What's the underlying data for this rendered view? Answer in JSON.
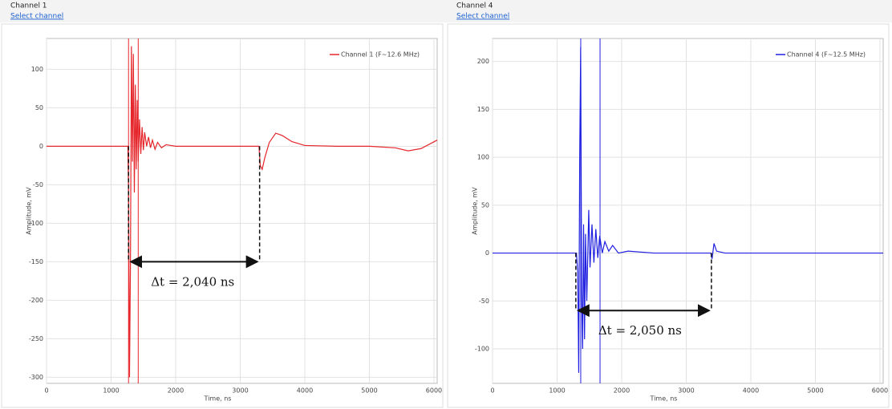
{
  "chart_data": [
    {
      "type": "line",
      "panel_title": "Channel 1",
      "link": "Select channel",
      "xlabel": "Time, ns",
      "ylabel": "Amplitude, mV",
      "xlim": [
        0,
        6050
      ],
      "ylim": [
        -308,
        140
      ],
      "xticks": [
        0,
        1000,
        2000,
        3000,
        4000,
        5000,
        6000
      ],
      "yticks": [
        100,
        50,
        0,
        -50,
        -100,
        -150,
        -200,
        -250,
        -300
      ],
      "grid": true,
      "legend": "upper right",
      "cursors": [
        1270,
        1420
      ],
      "series": [
        {
          "name": "Channel 1 (F~12.6 MHz)",
          "color": "#e5262b",
          "x": [
            0,
            500,
            1000,
            1260,
            1270,
            1285,
            1300,
            1315,
            1330,
            1345,
            1360,
            1375,
            1390,
            1405,
            1420,
            1440,
            1460,
            1480,
            1500,
            1520,
            1550,
            1580,
            1610,
            1640,
            1680,
            1720,
            1780,
            1850,
            2000,
            2500,
            3000,
            3290,
            3310,
            3340,
            3380,
            3450,
            3550,
            3650,
            3800,
            4000,
            4500,
            5000,
            5400,
            5600,
            5800,
            6050
          ],
          "values": [
            0,
            0,
            0,
            0,
            -60,
            -300,
            -150,
            130,
            -20,
            120,
            -60,
            80,
            -30,
            60,
            -20,
            35,
            -10,
            25,
            -5,
            18,
            0,
            12,
            -2,
            8,
            -4,
            5,
            -2,
            2,
            0,
            0,
            0,
            0,
            -25,
            -30,
            -15,
            5,
            17,
            14,
            6,
            1,
            0,
            0,
            -2,
            -6,
            -3,
            8
          ]
        }
      ],
      "annotation": {
        "text": "Δt = 2,040 ns",
        "x": [
          1270,
          3300
        ],
        "y": -150
      }
    },
    {
      "type": "line",
      "panel_title": "Channel 4",
      "link": "Select channel",
      "xlabel": "Time, ns",
      "ylabel": "Amplitude, mV",
      "xlim": [
        0,
        6050
      ],
      "ylim": [
        -136,
        224
      ],
      "xticks": [
        0,
        1000,
        2000,
        3000,
        4000,
        5000,
        6000
      ],
      "yticks": [
        200,
        150,
        100,
        50,
        0,
        -50,
        -100
      ],
      "grid": true,
      "legend": "upper right",
      "cursors": [
        1366,
        1665
      ],
      "series": [
        {
          "name": "Channel 4 (F~12.5 MHz)",
          "color": "#2020e0",
          "x": [
            0,
            500,
            1000,
            1300,
            1320,
            1335,
            1350,
            1365,
            1380,
            1395,
            1410,
            1425,
            1440,
            1460,
            1490,
            1510,
            1540,
            1570,
            1600,
            1630,
            1660,
            1700,
            1740,
            1800,
            1860,
            1950,
            2100,
            2500,
            3000,
            3380,
            3400,
            3430,
            3470,
            3600,
            4000,
            5000,
            6050
          ],
          "values": [
            0,
            0,
            0,
            0,
            -20,
            -125,
            100,
            215,
            -40,
            -100,
            30,
            -90,
            20,
            -50,
            45,
            -15,
            30,
            -10,
            25,
            -5,
            18,
            0,
            12,
            2,
            8,
            0,
            2,
            0,
            0,
            0,
            -6,
            10,
            2,
            0,
            0,
            0,
            0
          ]
        }
      ],
      "annotation": {
        "text": "Δt = 2,050 ns",
        "x": [
          1290,
          3390
        ],
        "y": -60
      }
    }
  ]
}
